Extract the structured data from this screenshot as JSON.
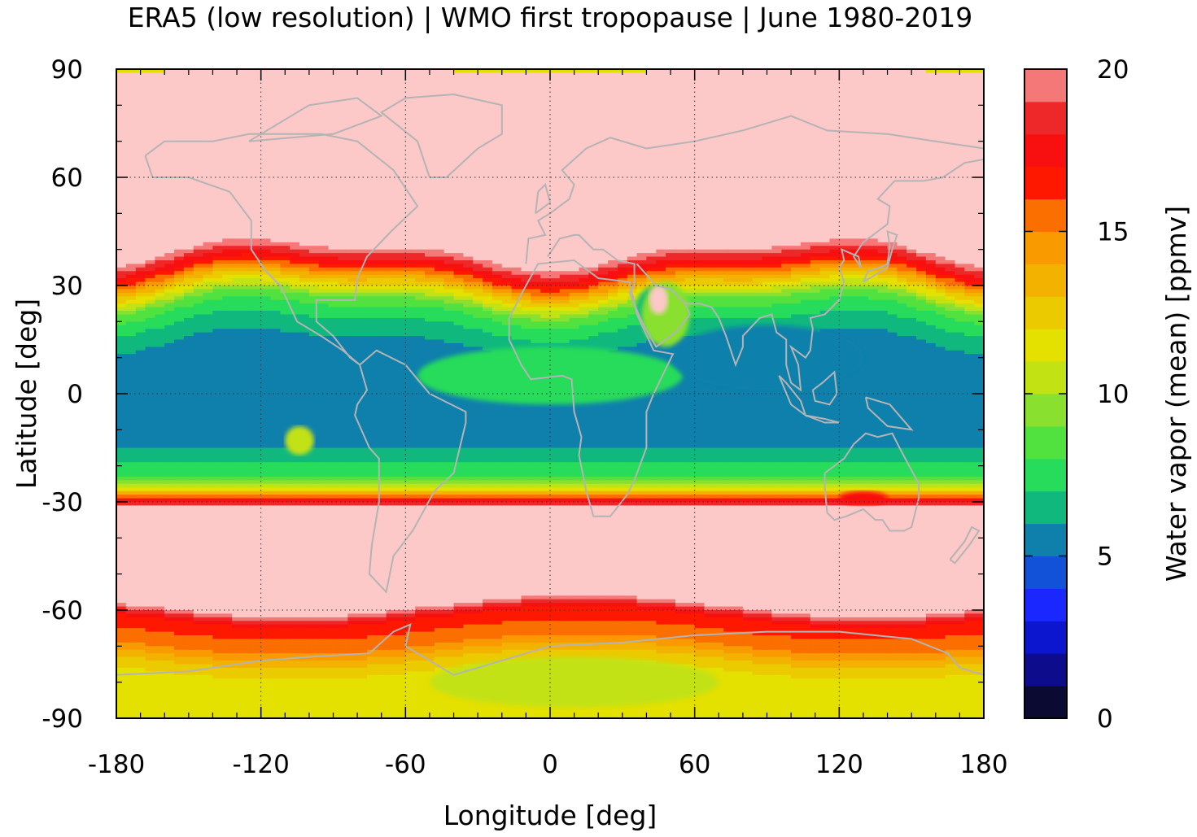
{
  "chart_data": {
    "type": "heatmap",
    "title": "ERA5 (low resolution) | WMO first tropopause | June 1980-2019",
    "xlabel": "Longitude [deg]",
    "ylabel": "Latitude [deg]",
    "colorbar_label": "Water vapor (mean) [ppmv]",
    "xlim": [
      -180,
      180
    ],
    "ylim": [
      -90,
      90
    ],
    "x_ticks": [
      "-180",
      "-120",
      "-60",
      "0",
      "60",
      "120",
      "180"
    ],
    "y_ticks": [
      "90",
      "60",
      "30",
      "0",
      "-30",
      "-60",
      "-90"
    ],
    "colorbar_ticks": [
      "20",
      "15",
      "10",
      "5",
      "0"
    ],
    "colorbar_range": [
      0,
      20
    ],
    "colorbar_levels": [
      "#0a0a32",
      "#0c0c8c",
      "#0c16ce",
      "#1a28ff",
      "#1252d8",
      "#0f80ac",
      "#10b87e",
      "#26dc5a",
      "#52e240",
      "#8ae02e",
      "#c2e214",
      "#e4e000",
      "#ecca00",
      "#f4b200",
      "#f89a00",
      "#fb6e00",
      "#ff1800",
      "#f81010",
      "#ee2828",
      "#f47878",
      "#fcc8c8"
    ],
    "grid": true,
    "field_bands": [
      {
        "lat": 90,
        "value": 20
      },
      {
        "lat": 40,
        "value": 20
      },
      {
        "lat": 35,
        "value": 16.5
      },
      {
        "lat": 30,
        "value": 12
      },
      {
        "lat": 25,
        "value": 8
      },
      {
        "lat": 18,
        "value": 6
      },
      {
        "lat": 8,
        "value": 4.5
      },
      {
        "lat": -12,
        "value": 4.5
      },
      {
        "lat": -16,
        "value": 6
      },
      {
        "lat": -22,
        "value": 7
      },
      {
        "lat": -26,
        "value": 11
      },
      {
        "lat": -29,
        "value": 16.5
      },
      {
        "lat": -31,
        "value": 20
      },
      {
        "lat": -58,
        "value": 20
      },
      {
        "lat": -62,
        "value": 16
      },
      {
        "lat": -68,
        "value": 15
      },
      {
        "lat": -74,
        "value": 12
      },
      {
        "lat": -80,
        "value": 10.5
      },
      {
        "lat": -90,
        "value": 10.5
      }
    ]
  }
}
